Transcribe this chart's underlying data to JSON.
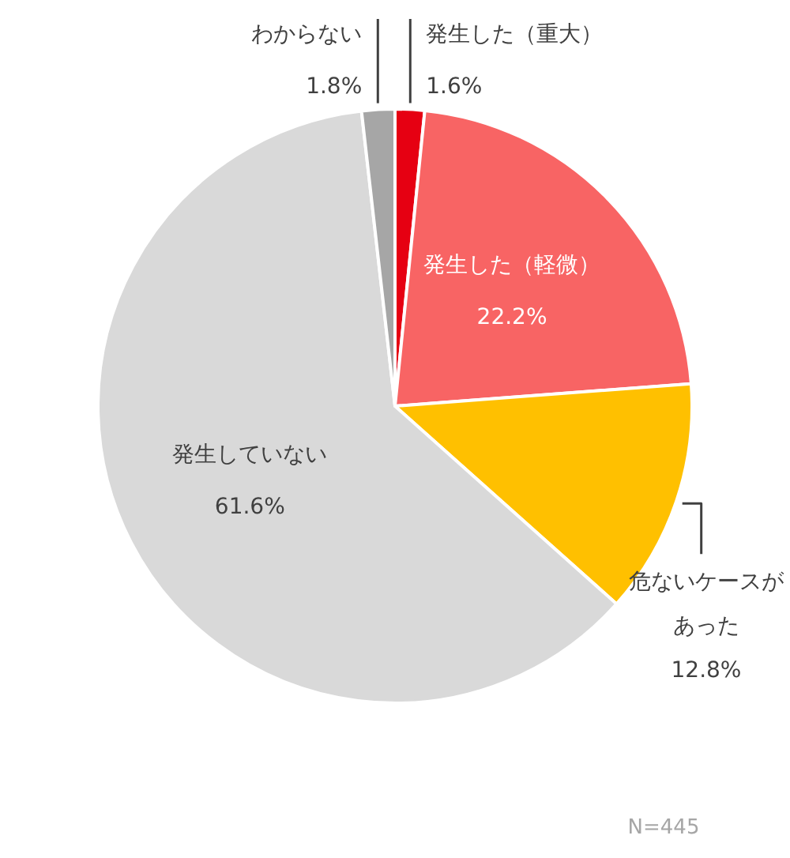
{
  "chart_data": {
    "type": "pie",
    "categories": [
      "発生した（重大）",
      "発生した（軽微）",
      "危ないケースがあった",
      "発生していない",
      "わからない"
    ],
    "values": [
      1.6,
      22.2,
      12.8,
      61.6,
      1.8
    ],
    "colors": [
      "#e60012",
      "#f86464",
      "#ffc000",
      "#d9d9d9",
      "#a6a6a6"
    ],
    "value_labels": [
      "1.6%",
      "22.2%",
      "12.8%",
      "61.6%",
      "1.8%"
    ],
    "annotations": [
      "N=445"
    ]
  }
}
